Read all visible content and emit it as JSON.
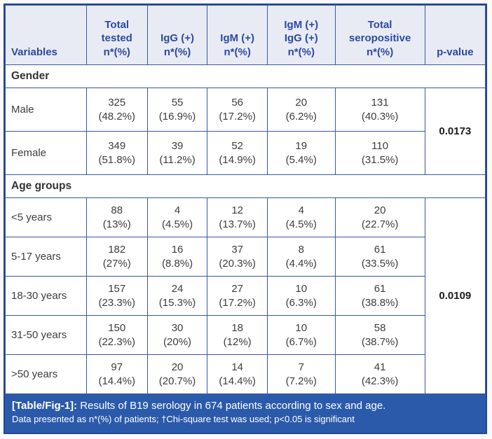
{
  "table": {
    "columns": [
      "Variables",
      "Total\ntested\nn*(%)",
      "IgG (+)\nn*(%)",
      "IgM (+)\nn*(%)",
      "IgM (+)\nIgG (+)\nn*(%)",
      "Total\nseropositive\nn*(%)",
      "p-value"
    ],
    "sections": [
      {
        "title": "Gender",
        "p_value": "0.0173",
        "rows": [
          {
            "label": "Male",
            "cells": [
              "325\n(48.2%)",
              "55\n(16.9%)",
              "56\n(17.2%)",
              "20\n(6.2%)",
              "131\n(40.3%)"
            ]
          },
          {
            "label": "Female",
            "cells": [
              "349\n(51.8%)",
              "39\n(11.2%)",
              "52\n(14.9%)",
              "19\n(5.4%)",
              "110\n(31.5%)"
            ]
          }
        ]
      },
      {
        "title": "Age groups",
        "p_value": "0.0109",
        "rows": [
          {
            "label": "<5 years",
            "cells": [
              "88\n(13%)",
              "4\n(4.5%)",
              "12\n(13.7%)",
              "4\n(4.5%)",
              "20\n(22.7%)"
            ]
          },
          {
            "label": "5-17 years",
            "cells": [
              "182\n(27%)",
              "16\n(8.8%)",
              "37\n(20.3%)",
              "8\n(4.4%)",
              "61\n(33.5%)"
            ]
          },
          {
            "label": "18-30 years",
            "cells": [
              "157\n(23.3%)",
              "24\n(15.3%)",
              "27\n(17.2%)",
              "10\n(6.3%)",
              "61\n(38.8%)"
            ]
          },
          {
            "label": "31-50 years",
            "cells": [
              "150\n(22.3%)",
              "30\n(20%)",
              "18\n(12%)",
              "10\n(6.7%)",
              "58\n(38.7%)"
            ]
          },
          {
            "label": ">50 years",
            "cells": [
              "97\n(14.4%)",
              "20\n(20.7%)",
              "14\n(14.4%)",
              "7\n(7.2%)",
              "41\n(42.3%)"
            ]
          }
        ]
      }
    ]
  },
  "footer": {
    "label": "[Table/Fig-1]:",
    "caption": "Results of B19 serology in 674 patients according to sex and age.",
    "note": "Data presented as n*(%) of patients; †Chi-square test was used; p<0.05 is significant"
  },
  "colors": {
    "border_blue": "#24459a",
    "inner_border_blue": "#3a57a5",
    "header_bg": "#e9ebf4",
    "header_text": "#2b4aa2",
    "caption_bar_bg": "#2b5aab",
    "caption_bar_text": "#ffffff",
    "body_text": "#3d3d3d"
  }
}
